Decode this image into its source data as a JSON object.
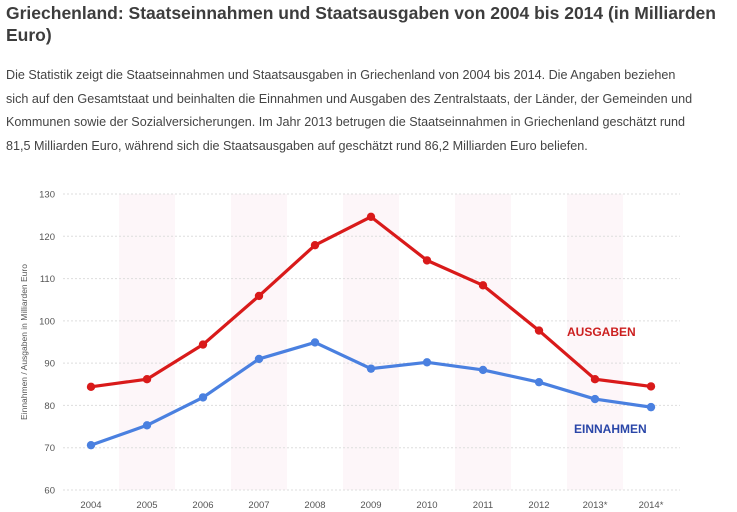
{
  "title": "Griechenland: Staatseinnahmen und Staatsausgaben von 2004 bis 2014 (in Milliarden Euro)",
  "description": "Die Statistik zeigt die Staatseinnahmen und Staatsausgaben in Griechenland von 2004 bis 2014. Die Angaben beziehen sich auf den Gesamtstaat und beinhalten die Einnahmen und Ausgaben des Zentralstaats, der Länder, der Gemeinden und Kommunen sowie der Sozialversicherungen. Im Jahr 2013 betrugen die Staatseinnahmen in Griechenland geschätzt rund 81,5 Milliarden Euro, während sich die Staatsausgaben auf geschätzt rund 86,2 Milliarden Euro beliefen.",
  "chart_data": {
    "type": "line",
    "title": "Griechenland: Staatseinnahmen und Staatsausgaben von 2004 bis 2014 (in Milliarden Euro)",
    "xlabel": "",
    "ylabel": "Einnahmen / Ausgaben in Milliarden Euro",
    "categories": [
      "2004",
      "2005",
      "2006",
      "2007",
      "2008",
      "2009",
      "2010",
      "2011",
      "2012",
      "2013*",
      "2014*"
    ],
    "ylim": [
      60,
      130
    ],
    "yticks": [
      60,
      70,
      80,
      90,
      100,
      110,
      120,
      130
    ],
    "grid": true,
    "series": [
      {
        "name": "AUSGABEN",
        "color": "#d91a1a",
        "label_color": "#cc1f1f",
        "values": [
          84.4,
          86.2,
          94.4,
          105.9,
          117.9,
          124.6,
          114.3,
          108.4,
          97.7,
          86.2,
          84.5
        ]
      },
      {
        "name": "EINNAHMEN",
        "color": "#4a80e0",
        "label_color": "#2a46a8",
        "values": [
          70.6,
          75.3,
          81.9,
          91.0,
          94.9,
          88.7,
          90.2,
          88.4,
          85.5,
          81.5,
          79.6
        ]
      }
    ]
  }
}
